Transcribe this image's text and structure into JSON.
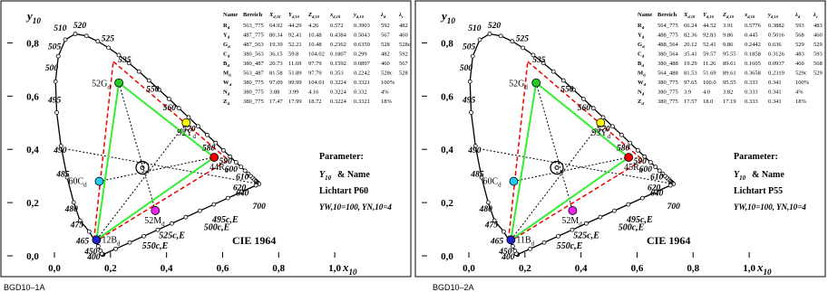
{
  "panels": [
    {
      "footer": "BGD10–1A",
      "chart_data": {
        "type": "scatter",
        "title": "CIE 1964",
        "xlabel": "x10",
        "ylabel": "y10",
        "xlim": [
          0,
          1.1
        ],
        "ylim": [
          0,
          0.9
        ],
        "x_ticks": [
          "0,0",
          "0,2",
          "0,4",
          "0,6",
          "0,8",
          "1,0"
        ],
        "y_ticks": [
          "0,0",
          "0,2",
          "0,4",
          "0,6",
          "0,8"
        ],
        "spectral_labels": [
          {
            "text": "400",
            "x": 0.17,
            "y": 0.0
          },
          {
            "text": "450",
            "x": 0.16,
            "y": 0.02
          },
          {
            "text": "465",
            "x": 0.13,
            "y": 0.06
          },
          {
            "text": "475",
            "x": 0.11,
            "y": 0.12
          },
          {
            "text": "480",
            "x": 0.09,
            "y": 0.18
          },
          {
            "text": "485",
            "x": 0.06,
            "y": 0.31
          },
          {
            "text": "490",
            "x": 0.05,
            "y": 0.4
          },
          {
            "text": "495",
            "x": 0.03,
            "y": 0.59
          },
          {
            "text": "500",
            "x": 0.02,
            "y": 0.71
          },
          {
            "text": "505",
            "x": 0.03,
            "y": 0.79
          },
          {
            "text": "510",
            "x": 0.05,
            "y": 0.86
          },
          {
            "text": "520",
            "x": 0.12,
            "y": 0.87
          },
          {
            "text": "525",
            "x": 0.22,
            "y": 0.82
          },
          {
            "text": "535",
            "x": 0.28,
            "y": 0.74
          },
          {
            "text": "550",
            "x": 0.38,
            "y": 0.63
          },
          {
            "text": "560",
            "x": 0.44,
            "y": 0.56
          },
          {
            "text": "570",
            "x": 0.51,
            "y": 0.48
          },
          {
            "text": "580",
            "x": 0.58,
            "y": 0.41
          },
          {
            "text": "590",
            "x": 0.64,
            "y": 0.36
          },
          {
            "text": "600",
            "x": 0.66,
            "y": 0.33
          },
          {
            "text": "610",
            "x": 0.7,
            "y": 0.3
          },
          {
            "text": "620",
            "x": 0.69,
            "y": 0.26
          },
          {
            "text": "640",
            "x": 0.7,
            "y": 0.24
          },
          {
            "text": "700",
            "x": 0.76,
            "y": 0.19
          },
          {
            "text": "495c,E",
            "x": 0.55,
            "y": 0.14
          },
          {
            "text": "500c,E",
            "x": 0.52,
            "y": 0.11
          },
          {
            "text": "525c,E",
            "x": 0.36,
            "y": 0.08
          },
          {
            "text": "550c,E",
            "x": 0.3,
            "y": 0.04
          }
        ],
        "points": [
          {
            "label": "52G",
            "sub": "d",
            "x": 0.23,
            "y": 0.65,
            "color": "#22cc22"
          },
          {
            "label": "92Y",
            "sub": "d",
            "x": 0.47,
            "y": 0.5,
            "color": "#ffff00"
          },
          {
            "label": "44R",
            "sub": "d",
            "x": 0.57,
            "y": 0.37,
            "color": "#ee0000"
          },
          {
            "label": "60C",
            "sub": "d",
            "x": 0.16,
            "y": 0.28,
            "color": "#22ccee"
          },
          {
            "label": "52M",
            "sub": "d",
            "x": 0.36,
            "y": 0.17,
            "color": "#ee22ee"
          },
          {
            "label": "12B",
            "sub": "d",
            "x": 0.15,
            "y": 0.06,
            "color": "#2222cc"
          }
        ],
        "white_point": {
          "x": 0.3138,
          "y": 0.331
        },
        "table_header": [
          "Name",
          "Bereich",
          "X_d,10",
          "Y_d,10",
          "Z_d,10",
          "x_d,10",
          "y_d,10",
          "λ_d",
          "λ_c"
        ],
        "table_rows": [
          [
            "R_d",
            "563_775",
            "64.92",
            "44.29",
            "4.26",
            "0.572",
            "0.3903",
            "592",
            "482"
          ],
          [
            "Y_d",
            "487_775",
            "80.34",
            "92.41",
            "10.48",
            "0.4384",
            "0.5043",
            "567",
            "460"
          ],
          [
            "G_d",
            "487_563",
            "19.39",
            "52.21",
            "10.48",
            "0.2362",
            "0.6359",
            "528",
            "528c"
          ],
          [
            "C_d",
            "380_563",
            "36.15",
            "59.8",
            "104.02",
            "0.1807",
            "0.299",
            "482",
            "592"
          ],
          [
            "B_d",
            "380_487",
            "20.73",
            "11.69",
            "97.79",
            "0.1592",
            "0.0897",
            "460",
            "567"
          ],
          [
            "M_d",
            "563_487",
            "81.58",
            "51.89",
            "97.79",
            "0.353",
            "0.2242",
            "528c",
            "528"
          ],
          [
            "W_d",
            "380_775",
            "97.09",
            "99.99",
            "104.01",
            "0.3224",
            "0.3321",
            "100%",
            ""
          ],
          [
            "N_d",
            "380_775",
            "3.88",
            "3.99",
            "4.16",
            "0.3224",
            "0.332",
            "4%",
            ""
          ],
          [
            "Z_d",
            "380_775",
            "17.47",
            "17.99",
            "18.72",
            "0.3224",
            "0.3321",
            "18%",
            ""
          ]
        ],
        "params": {
          "heading": "Parameter:",
          "line1": "Y10 & Name",
          "line2": "Lichtart P60",
          "line3": "YW,10=100, YN,10=4"
        }
      }
    },
    {
      "footer": "BGD10–2A",
      "chart_data": {
        "type": "scatter",
        "title": "CIE 1964",
        "xlabel": "x10",
        "ylabel": "y10",
        "xlim": [
          0,
          1.1
        ],
        "ylim": [
          0,
          0.9
        ],
        "x_ticks": [
          "0,0",
          "0,2",
          "0,4",
          "0,6",
          "0,8",
          "1,0"
        ],
        "y_ticks": [
          "0,0",
          "0,2",
          "0,4",
          "0,6",
          "0,8"
        ],
        "spectral_labels": [
          {
            "text": "400",
            "x": 0.17,
            "y": 0.0
          },
          {
            "text": "450",
            "x": 0.16,
            "y": 0.02
          },
          {
            "text": "465",
            "x": 0.13,
            "y": 0.06
          },
          {
            "text": "475",
            "x": 0.11,
            "y": 0.12
          },
          {
            "text": "480",
            "x": 0.09,
            "y": 0.18
          },
          {
            "text": "485",
            "x": 0.06,
            "y": 0.31
          },
          {
            "text": "490",
            "x": 0.05,
            "y": 0.4
          },
          {
            "text": "495",
            "x": 0.03,
            "y": 0.59
          },
          {
            "text": "500",
            "x": 0.02,
            "y": 0.71
          },
          {
            "text": "505",
            "x": 0.03,
            "y": 0.79
          },
          {
            "text": "510",
            "x": 0.05,
            "y": 0.86
          },
          {
            "text": "520",
            "x": 0.12,
            "y": 0.87
          },
          {
            "text": "525",
            "x": 0.22,
            "y": 0.82
          },
          {
            "text": "535",
            "x": 0.28,
            "y": 0.74
          },
          {
            "text": "550",
            "x": 0.38,
            "y": 0.63
          },
          {
            "text": "560",
            "x": 0.44,
            "y": 0.56
          },
          {
            "text": "570",
            "x": 0.51,
            "y": 0.48
          },
          {
            "text": "580",
            "x": 0.58,
            "y": 0.41
          },
          {
            "text": "590",
            "x": 0.64,
            "y": 0.36
          },
          {
            "text": "600",
            "x": 0.66,
            "y": 0.33
          },
          {
            "text": "610",
            "x": 0.7,
            "y": 0.3
          },
          {
            "text": "620",
            "x": 0.69,
            "y": 0.26
          },
          {
            "text": "640",
            "x": 0.7,
            "y": 0.24
          },
          {
            "text": "700",
            "x": 0.76,
            "y": 0.19
          },
          {
            "text": "495c,E",
            "x": 0.55,
            "y": 0.14
          },
          {
            "text": "500c,E",
            "x": 0.52,
            "y": 0.11
          },
          {
            "text": "525c,E",
            "x": 0.36,
            "y": 0.08
          },
          {
            "text": "550c,E",
            "x": 0.3,
            "y": 0.04
          }
        ],
        "points": [
          {
            "label": "52G",
            "sub": "d",
            "x": 0.24,
            "y": 0.65,
            "color": "#22cc22"
          },
          {
            "label": "93Y",
            "sub": "d",
            "x": 0.47,
            "y": 0.5,
            "color": "#ffff00"
          },
          {
            "label": "45R",
            "sub": "d",
            "x": 0.57,
            "y": 0.37,
            "color": "#ee0000"
          },
          {
            "label": "60C",
            "sub": "d",
            "x": 0.16,
            "y": 0.28,
            "color": "#22ccee"
          },
          {
            "label": "52M",
            "sub": "d",
            "x": 0.37,
            "y": 0.17,
            "color": "#ee22ee"
          },
          {
            "label": "11B",
            "sub": "d",
            "x": 0.15,
            "y": 0.06,
            "color": "#2222cc"
          }
        ],
        "white_point": {
          "x": 0.3138,
          "y": 0.331
        },
        "table_header": [
          "Name",
          "Bereich",
          "X_d,10",
          "Y_d,10",
          "Z_d,10",
          "x_d,10",
          "y_d,10",
          "λ_d",
          "λ_c"
        ],
        "table_rows": [
          [
            "R_d",
            "564_775",
            "66.24",
            "44.52",
            "3.91",
            "0.5776",
            "0.3882",
            "593",
            "483"
          ],
          [
            "Y_d",
            "488_775",
            "82.36",
            "92.83",
            "9.86",
            "0.445",
            "0.5016",
            "568",
            "460"
          ],
          [
            "G_d",
            "488_564",
            "20.12",
            "52.41",
            "9.86",
            "0.2442",
            "0.636",
            "529",
            "529"
          ],
          [
            "C_d",
            "380_564",
            "35.41",
            "59.57",
            "95.55",
            "0.1858",
            "0.3126",
            "483",
            "593"
          ],
          [
            "B_d",
            "380_488",
            "19.29",
            "11.26",
            "89.61",
            "0.1605",
            "0.0937",
            "460",
            "568"
          ],
          [
            "M_d",
            "564_488",
            "81.53",
            "51.69",
            "89.61",
            "0.3658",
            "0.2319",
            "529c",
            "529"
          ],
          [
            "W_d",
            "380_775",
            "97.65",
            "100.0",
            "95.55",
            "0.333",
            "0.341",
            "100%",
            ""
          ],
          [
            "N_d",
            "380_775",
            "3.9",
            "4.0",
            "3.82",
            "0.333",
            "0.341",
            "4%",
            ""
          ],
          [
            "Z_d",
            "380_775",
            "17.57",
            "18.0",
            "17.19",
            "0.333",
            "0.341",
            "18%",
            ""
          ]
        ],
        "params": {
          "heading": "Parameter:",
          "line1": "Y10 & Name",
          "line2": "Lichtart P55",
          "line3": "YW,10=100, YN,10=4"
        }
      }
    }
  ]
}
